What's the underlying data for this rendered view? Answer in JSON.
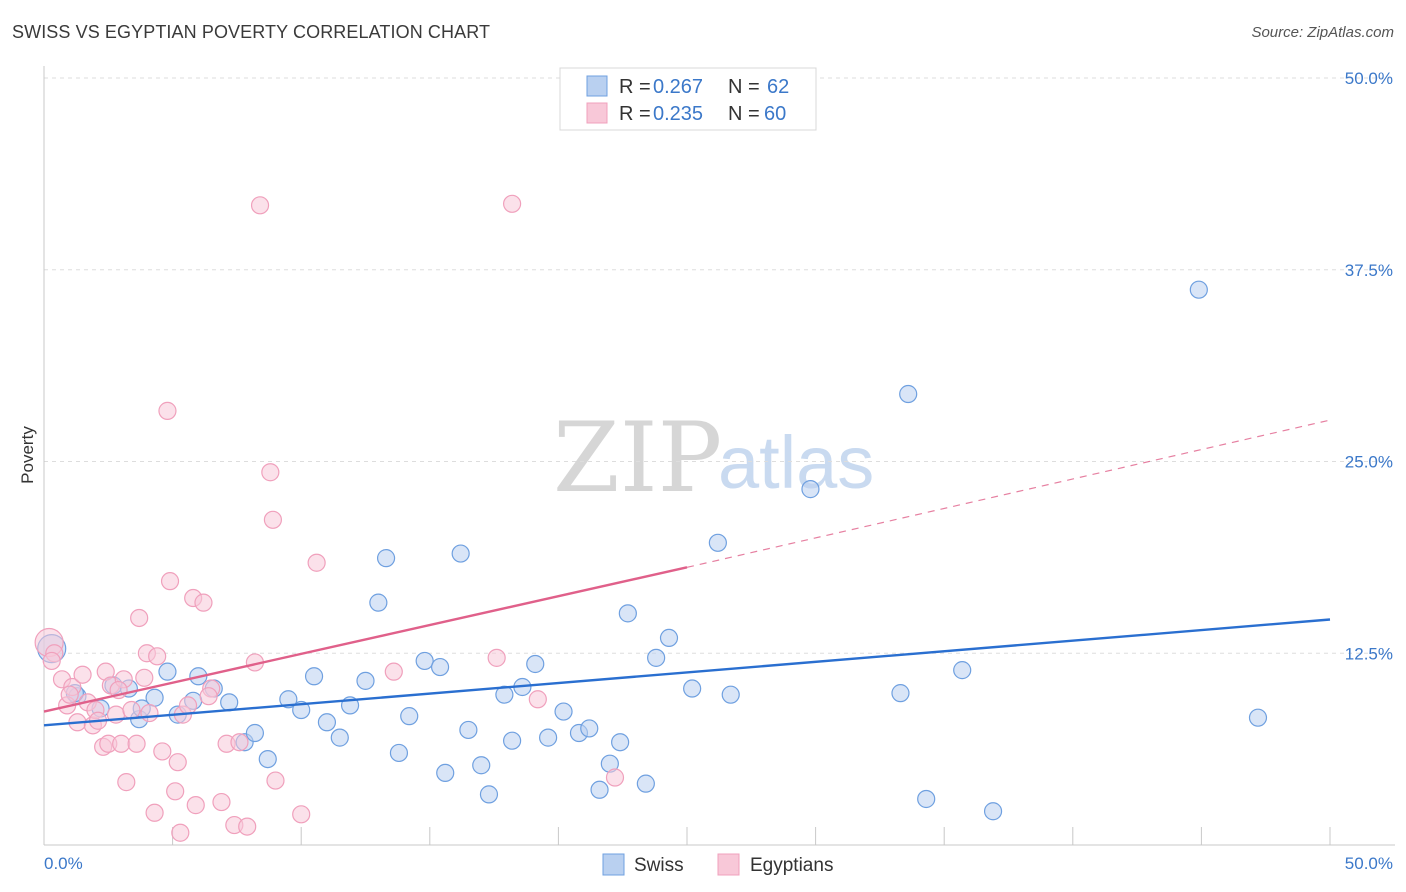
{
  "chart_data": {
    "type": "scatter",
    "title": "SWISS VS EGYPTIAN POVERTY CORRELATION CHART",
    "source": "Source: ZipAtlas.com",
    "xlabel": "",
    "ylabel": "Poverty",
    "xlim": [
      0,
      50
    ],
    "ylim": [
      0,
      50
    ],
    "x_tick_labels": [
      "0.0%",
      "50.0%"
    ],
    "y_ticks": [
      12.5,
      25.0,
      37.5,
      50.0
    ],
    "y_tick_labels": [
      "12.5%",
      "25.0%",
      "37.5%",
      "50.0%"
    ],
    "grid": true,
    "watermark": {
      "zip": "ZIP",
      "atlas": "atlas"
    },
    "legend": {
      "entries": [
        {
          "r_label": "R =",
          "r_value": "0.267",
          "n_label": "N =",
          "n_value": "62"
        },
        {
          "r_label": "R =",
          "r_value": "0.235",
          "n_label": "N =",
          "n_value": "60"
        }
      ]
    },
    "series": [
      {
        "name": "Swiss",
        "color": "#6fa0e0",
        "fill": "#b9d0f0",
        "line_color": "#2a6fd0",
        "trend": {
          "x": [
            0,
            50
          ],
          "y": [
            7.8,
            14.7
          ],
          "dashed_from": null
        },
        "points": [
          [
            0.3,
            12.8
          ],
          [
            1.3,
            9.7
          ],
          [
            2.2,
            8.9
          ],
          [
            2.7,
            10.4
          ],
          [
            3.3,
            10.2
          ],
          [
            3.7,
            8.2
          ],
          [
            3.8,
            8.9
          ],
          [
            4.3,
            9.6
          ],
          [
            4.8,
            11.3
          ],
          [
            5.2,
            8.5
          ],
          [
            5.8,
            9.4
          ],
          [
            6.0,
            11.0
          ],
          [
            6.6,
            10.2
          ],
          [
            7.2,
            9.3
          ],
          [
            7.8,
            6.7
          ],
          [
            8.2,
            7.3
          ],
          [
            8.7,
            5.6
          ],
          [
            9.5,
            9.5
          ],
          [
            10.0,
            8.8
          ],
          [
            10.5,
            11.0
          ],
          [
            11.0,
            8.0
          ],
          [
            11.5,
            7.0
          ],
          [
            11.9,
            9.1
          ],
          [
            12.5,
            10.7
          ],
          [
            13.0,
            15.8
          ],
          [
            13.3,
            18.7
          ],
          [
            13.8,
            6.0
          ],
          [
            14.2,
            8.4
          ],
          [
            14.8,
            12.0
          ],
          [
            15.4,
            11.6
          ],
          [
            15.6,
            4.7
          ],
          [
            16.2,
            19.0
          ],
          [
            16.5,
            7.5
          ],
          [
            17.0,
            5.2
          ],
          [
            17.3,
            3.3
          ],
          [
            17.9,
            9.8
          ],
          [
            18.2,
            6.8
          ],
          [
            18.6,
            10.3
          ],
          [
            19.1,
            11.8
          ],
          [
            19.6,
            7.0
          ],
          [
            20.2,
            8.7
          ],
          [
            20.8,
            7.3
          ],
          [
            21.2,
            7.6
          ],
          [
            21.6,
            3.6
          ],
          [
            22.0,
            5.3
          ],
          [
            22.4,
            6.7
          ],
          [
            22.7,
            15.1
          ],
          [
            23.4,
            4.0
          ],
          [
            23.8,
            12.2
          ],
          [
            24.3,
            13.5
          ],
          [
            25.2,
            10.2
          ],
          [
            26.2,
            19.7
          ],
          [
            26.7,
            9.8
          ],
          [
            29.8,
            23.2
          ],
          [
            33.3,
            9.9
          ],
          [
            33.6,
            29.4
          ],
          [
            34.3,
            3.0
          ],
          [
            35.7,
            11.4
          ],
          [
            36.9,
            2.2
          ],
          [
            44.9,
            36.2
          ],
          [
            47.2,
            8.3
          ],
          [
            1.2,
            9.9
          ]
        ]
      },
      {
        "name": "Egyptians",
        "color": "#f0a0bc",
        "fill": "#f8c8d8",
        "line_color": "#e0608a",
        "trend": {
          "x": [
            0,
            25,
            50
          ],
          "y": [
            8.7,
            18.1,
            27.7
          ],
          "dashed_from": 25
        },
        "points": [
          [
            0.2,
            13.2
          ],
          [
            0.4,
            12.5
          ],
          [
            0.7,
            10.8
          ],
          [
            0.9,
            9.1
          ],
          [
            1.1,
            10.3
          ],
          [
            1.3,
            8.0
          ],
          [
            1.5,
            11.1
          ],
          [
            1.7,
            9.3
          ],
          [
            1.9,
            7.8
          ],
          [
            2.0,
            8.8
          ],
          [
            2.1,
            8.1
          ],
          [
            2.3,
            6.4
          ],
          [
            2.4,
            11.3
          ],
          [
            2.5,
            6.6
          ],
          [
            2.6,
            10.4
          ],
          [
            2.8,
            8.5
          ],
          [
            3.0,
            6.6
          ],
          [
            3.1,
            10.8
          ],
          [
            3.2,
            4.1
          ],
          [
            3.4,
            8.8
          ],
          [
            3.6,
            6.6
          ],
          [
            3.7,
            14.8
          ],
          [
            3.9,
            10.9
          ],
          [
            4.0,
            12.5
          ],
          [
            4.1,
            8.6
          ],
          [
            4.3,
            2.1
          ],
          [
            4.4,
            12.3
          ],
          [
            4.6,
            6.1
          ],
          [
            4.8,
            28.3
          ],
          [
            4.9,
            17.2
          ],
          [
            5.1,
            3.5
          ],
          [
            5.2,
            5.4
          ],
          [
            5.3,
            0.8
          ],
          [
            5.4,
            8.5
          ],
          [
            5.6,
            9.1
          ],
          [
            5.8,
            16.1
          ],
          [
            5.9,
            2.6
          ],
          [
            6.2,
            15.8
          ],
          [
            6.5,
            10.2
          ],
          [
            6.9,
            2.8
          ],
          [
            7.1,
            6.6
          ],
          [
            7.4,
            1.3
          ],
          [
            7.6,
            6.7
          ],
          [
            7.9,
            1.2
          ],
          [
            8.2,
            11.9
          ],
          [
            8.4,
            41.7
          ],
          [
            8.8,
            24.3
          ],
          [
            8.9,
            21.2
          ],
          [
            9.0,
            4.2
          ],
          [
            10.0,
            2.0
          ],
          [
            10.6,
            18.4
          ],
          [
            13.6,
            11.3
          ],
          [
            17.6,
            12.2
          ],
          [
            18.2,
            41.8
          ],
          [
            19.2,
            9.5
          ],
          [
            22.2,
            4.4
          ],
          [
            0.3,
            12.0
          ],
          [
            1.0,
            9.8
          ],
          [
            2.9,
            10.1
          ],
          [
            6.4,
            9.7
          ]
        ]
      }
    ]
  }
}
